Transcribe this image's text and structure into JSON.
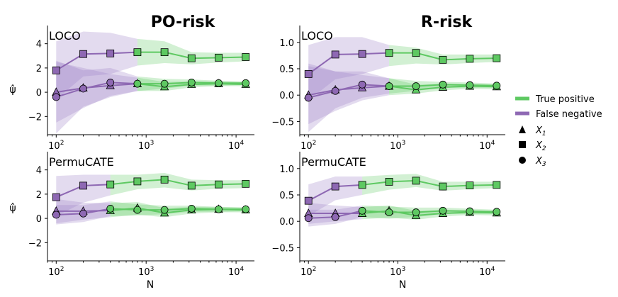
{
  "colors": {
    "true_positive": "#5ec962",
    "false_negative": "#8e68b3",
    "tp_fill": "#5ec962",
    "fn_fill": "#9c7cc4"
  },
  "titles": {
    "po": "PO-risk",
    "r": "R-risk"
  },
  "axis": {
    "ylabel": "ψ̂",
    "xlabel": "N"
  },
  "legend": {
    "true_positive": "True positive",
    "false_negative": "False negative",
    "x1": "X",
    "x1_sub": "1",
    "x2": "X",
    "x2_sub": "2",
    "x3": "X",
    "x3_sub": "3"
  },
  "chart_data": [
    {
      "id": "po-loco",
      "type": "line",
      "label": "LOCO",
      "xscale": "log",
      "xlim": [
        80,
        16000
      ],
      "ylim": [
        -3.5,
        5.5
      ],
      "yticks": [
        -2,
        0,
        2,
        4
      ],
      "ytick_labels": [
        "−2",
        "0",
        "2",
        "4"
      ],
      "x": [
        100,
        200,
        400,
        800,
        1600,
        3200,
        6400,
        12800
      ],
      "transition_index": 3,
      "series": [
        {
          "name": "X2",
          "marker": "square",
          "values": [
            1.8,
            3.15,
            3.2,
            3.3,
            3.3,
            2.8,
            2.85,
            2.9
          ],
          "lower": [
            -0.6,
            1.3,
            1.5,
            2.2,
            2.4,
            2.3,
            2.45,
            2.55
          ],
          "upper": [
            4.2,
            5.0,
            4.9,
            4.4,
            4.2,
            3.3,
            3.25,
            3.25
          ]
        },
        {
          "name": "X1",
          "marker": "triangle",
          "values": [
            0.0,
            0.35,
            0.55,
            0.7,
            0.45,
            0.65,
            0.7,
            0.65
          ],
          "lower": [
            -2.5,
            -1.3,
            -0.3,
            0.1,
            0.1,
            0.4,
            0.5,
            0.5
          ],
          "upper": [
            2.5,
            2.0,
            1.5,
            1.2,
            0.85,
            0.9,
            0.9,
            0.8
          ]
        },
        {
          "name": "X3",
          "marker": "circle",
          "values": [
            -0.4,
            0.3,
            0.8,
            0.7,
            0.7,
            0.8,
            0.75,
            0.75
          ],
          "lower": [
            -3.4,
            -1.2,
            -0.4,
            0.1,
            0.3,
            0.55,
            0.55,
            0.6
          ],
          "upper": [
            2.6,
            1.8,
            2.0,
            1.3,
            1.1,
            1.05,
            0.95,
            0.9
          ]
        }
      ]
    },
    {
      "id": "r-loco",
      "type": "line",
      "label": "LOCO",
      "xscale": "log",
      "xlim": [
        80,
        16000
      ],
      "ylim": [
        -0.75,
        1.32
      ],
      "yticks": [
        -0.5,
        0.0,
        0.5,
        1.0
      ],
      "ytick_labels": [
        "−0.5",
        "0.0",
        "0.5",
        "1.0"
      ],
      "x": [
        100,
        200,
        400,
        800,
        1600,
        3200,
        6400,
        12800
      ],
      "transition_index": 3,
      "series": [
        {
          "name": "X2",
          "marker": "square",
          "values": [
            0.4,
            0.77,
            0.78,
            0.8,
            0.8,
            0.67,
            0.69,
            0.7
          ],
          "lower": [
            -0.1,
            0.3,
            0.4,
            0.55,
            0.6,
            0.58,
            0.61,
            0.63
          ],
          "upper": [
            0.95,
            1.1,
            1.1,
            0.95,
            0.9,
            0.77,
            0.77,
            0.77
          ]
        },
        {
          "name": "X1",
          "marker": "triangle",
          "values": [
            0.0,
            0.1,
            0.14,
            0.17,
            0.1,
            0.15,
            0.17,
            0.16
          ],
          "lower": [
            -0.55,
            -0.3,
            -0.1,
            0.0,
            0.03,
            0.09,
            0.12,
            0.11
          ],
          "upper": [
            0.55,
            0.45,
            0.38,
            0.32,
            0.2,
            0.21,
            0.21,
            0.2
          ]
        },
        {
          "name": "X3",
          "marker": "circle",
          "values": [
            -0.05,
            0.08,
            0.2,
            0.17,
            0.17,
            0.2,
            0.19,
            0.18
          ],
          "lower": [
            -0.7,
            -0.25,
            -0.05,
            0.03,
            0.08,
            0.14,
            0.14,
            0.14
          ],
          "upper": [
            0.6,
            0.45,
            0.45,
            0.32,
            0.27,
            0.25,
            0.24,
            0.22
          ]
        }
      ]
    },
    {
      "id": "po-permu",
      "type": "line",
      "label": "PermuCATE",
      "xscale": "log",
      "xlim": [
        80,
        16000
      ],
      "ylim": [
        -3.5,
        5.5
      ],
      "yticks": [
        -2,
        0,
        2,
        4
      ],
      "ytick_labels": [
        "−2",
        "0",
        "2",
        "4"
      ],
      "x": [
        100,
        200,
        400,
        800,
        1600,
        3200,
        6400,
        12800
      ],
      "transition_index": 2,
      "series": [
        {
          "name": "X2",
          "marker": "square",
          "values": [
            1.75,
            2.7,
            2.8,
            3.05,
            3.2,
            2.7,
            2.8,
            2.85
          ],
          "lower": [
            0.2,
            1.3,
            1.9,
            2.4,
            2.55,
            2.3,
            2.45,
            2.5
          ],
          "upper": [
            3.5,
            3.6,
            3.6,
            3.6,
            3.75,
            3.2,
            3.15,
            3.15
          ]
        },
        {
          "name": "X1",
          "marker": "triangle",
          "values": [
            0.6,
            0.6,
            0.65,
            0.85,
            0.45,
            0.7,
            0.75,
            0.7
          ],
          "lower": [
            -0.4,
            -0.1,
            0.1,
            0.3,
            0.1,
            0.4,
            0.5,
            0.5
          ],
          "upper": [
            1.6,
            1.3,
            1.25,
            1.35,
            0.85,
            0.95,
            0.95,
            0.9
          ]
        },
        {
          "name": "X3",
          "marker": "circle",
          "values": [
            0.3,
            0.4,
            0.8,
            0.7,
            0.7,
            0.8,
            0.75,
            0.75
          ],
          "lower": [
            -0.5,
            -0.3,
            0.2,
            0.25,
            0.35,
            0.55,
            0.55,
            0.6
          ],
          "upper": [
            1.1,
            1.1,
            1.4,
            1.15,
            1.05,
            1.05,
            0.95,
            0.9
          ]
        }
      ]
    },
    {
      "id": "r-permu",
      "type": "line",
      "label": "PermuCATE",
      "xscale": "log",
      "xlim": [
        80,
        16000
      ],
      "ylim": [
        -0.75,
        1.32
      ],
      "yticks": [
        -0.5,
        0.0,
        0.5,
        1.0
      ],
      "ytick_labels": [
        "−0.5",
        "0.0",
        "0.5",
        "1.0"
      ],
      "x": [
        100,
        200,
        400,
        800,
        1600,
        3200,
        6400,
        12800
      ],
      "transition_index": 2,
      "series": [
        {
          "name": "X2",
          "marker": "square",
          "values": [
            0.39,
            0.66,
            0.69,
            0.75,
            0.77,
            0.66,
            0.68,
            0.69
          ],
          "lower": [
            0.1,
            0.4,
            0.5,
            0.6,
            0.65,
            0.58,
            0.61,
            0.63
          ],
          "upper": [
            0.7,
            0.85,
            0.85,
            0.88,
            0.9,
            0.75,
            0.75,
            0.75
          ]
        },
        {
          "name": "X1",
          "marker": "triangle",
          "values": [
            0.15,
            0.15,
            0.15,
            0.2,
            0.11,
            0.15,
            0.17,
            0.16
          ],
          "lower": [
            -0.05,
            0.0,
            0.04,
            0.07,
            0.03,
            0.09,
            0.12,
            0.11
          ],
          "upper": [
            0.35,
            0.3,
            0.27,
            0.3,
            0.2,
            0.21,
            0.21,
            0.2
          ]
        },
        {
          "name": "X3",
          "marker": "circle",
          "values": [
            0.06,
            0.08,
            0.2,
            0.17,
            0.17,
            0.2,
            0.19,
            0.18
          ],
          "lower": [
            -0.1,
            -0.05,
            0.08,
            0.05,
            0.08,
            0.14,
            0.14,
            0.14
          ],
          "upper": [
            0.22,
            0.22,
            0.3,
            0.28,
            0.26,
            0.26,
            0.24,
            0.22
          ]
        }
      ]
    }
  ]
}
